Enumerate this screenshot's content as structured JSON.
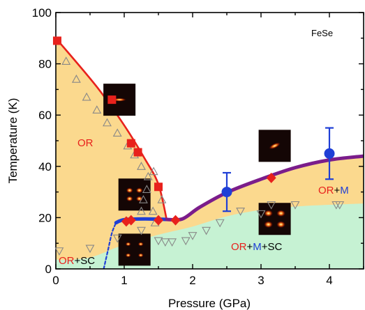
{
  "chart_data": {
    "type": "scatter",
    "title": "",
    "panel_label": "FeSe",
    "xlabel": "Pressure (GPa)",
    "ylabel": "Temperature (K)",
    "xlim": [
      0,
      4.5
    ],
    "ylim": [
      0,
      100
    ],
    "xticks": [
      "0",
      "1",
      "2",
      "3",
      "4"
    ],
    "yticks": [
      "0",
      "20",
      "40",
      "60",
      "80",
      "100"
    ],
    "grid": false,
    "colors": {
      "or_region": "#fbd98e",
      "sc_region": "#c6f2d3",
      "red": "#e8211c",
      "blue": "#1f3fd6",
      "purple": "#7b1d8b",
      "marker_gray": "#888888"
    },
    "region_labels": {
      "or": "OR",
      "or_sc_or": "OR",
      "or_sc_sc": "+SC",
      "or_m_or": "OR",
      "or_m_plus": "+",
      "or_m_m": "M",
      "or_m_sc_or": "OR",
      "or_m_sc_plus1": "+",
      "or_m_sc_m": "M",
      "or_m_sc_sc": "+SC"
    },
    "series": [
      {
        "marker": "red-square",
        "points": [
          [
            0.02,
            89
          ],
          [
            0.82,
            66
          ],
          [
            1.1,
            49
          ],
          [
            1.2,
            45.5
          ],
          [
            1.5,
            32
          ]
        ]
      },
      {
        "marker": "red-diamond",
        "points": [
          [
            1.03,
            18.5
          ],
          [
            1.1,
            19
          ],
          [
            1.5,
            19
          ],
          [
            1.75,
            19
          ],
          [
            3.15,
            35.5
          ]
        ]
      },
      {
        "marker": "blue-circle",
        "points": [
          [
            2.5,
            30,
            7.5
          ],
          [
            4.0,
            45,
            10
          ]
        ]
      },
      {
        "marker": "gray-triangle-up",
        "points": [
          [
            0.15,
            81
          ],
          [
            0.3,
            74
          ],
          [
            0.45,
            67
          ],
          [
            0.6,
            62
          ],
          [
            0.75,
            57
          ],
          [
            0.9,
            53
          ],
          [
            1.05,
            48
          ],
          [
            1.15,
            44.5
          ],
          [
            1.25,
            40
          ],
          [
            1.35,
            36
          ],
          [
            1.43,
            38
          ],
          [
            1.33,
            31
          ],
          [
            1.28,
            27
          ],
          [
            1.25,
            22.5
          ],
          [
            1.42,
            22.5
          ],
          [
            1.55,
            27
          ],
          [
            1.45,
            18
          ]
        ]
      },
      {
        "marker": "gray-triangle-down",
        "points": [
          [
            0.05,
            7
          ],
          [
            0.5,
            8
          ],
          [
            0.9,
            12
          ],
          [
            1.25,
            15
          ],
          [
            1.5,
            11
          ],
          [
            1.6,
            10.5
          ],
          [
            1.7,
            10.5
          ],
          [
            1.9,
            11
          ],
          [
            2.0,
            13
          ],
          [
            2.2,
            15
          ],
          [
            2.4,
            18
          ],
          [
            2.7,
            22.5
          ],
          [
            3.0,
            21.5
          ],
          [
            3.15,
            25
          ],
          [
            3.5,
            25
          ],
          [
            4.1,
            25
          ],
          [
            4.15,
            25
          ]
        ]
      }
    ],
    "lines": [
      {
        "color": "red",
        "style": "solid",
        "points": [
          [
            0,
            90
          ],
          [
            0.6,
            71
          ],
          [
            1.0,
            56
          ],
          [
            1.3,
            43
          ],
          [
            1.5,
            33
          ],
          [
            1.62,
            19.3
          ]
        ]
      },
      {
        "color": "blue",
        "style": "solid",
        "points": [
          [
            0.88,
            18
          ],
          [
            1.0,
            19.2
          ],
          [
            1.3,
            19.5
          ],
          [
            1.62,
            19.3
          ]
        ]
      },
      {
        "color": "blue",
        "style": "dashed",
        "points": [
          [
            0.7,
            0
          ],
          [
            0.76,
            7
          ],
          [
            0.82,
            14
          ],
          [
            0.88,
            18
          ]
        ]
      },
      {
        "color": "purple",
        "style": "solid",
        "points": [
          [
            1.62,
            19.3
          ],
          [
            1.85,
            19.5
          ],
          [
            2.1,
            24
          ],
          [
            2.5,
            29.8
          ],
          [
            3.0,
            35
          ],
          [
            3.5,
            39.5
          ],
          [
            4.0,
            42.5
          ],
          [
            4.5,
            44
          ]
        ]
      }
    ],
    "insets": [
      {
        "x": 0.93,
        "y": 66,
        "pattern": "single-horizontal"
      },
      {
        "x": 3.2,
        "y": 48,
        "pattern": "single-diagonal"
      },
      {
        "x": 1.15,
        "y": 29,
        "pattern": "four-spot"
      },
      {
        "x": 3.2,
        "y": 19.5,
        "pattern": "four-spot-strong"
      },
      {
        "x": 1.15,
        "y": 7.5,
        "pattern": "four-spot-dim"
      }
    ]
  }
}
